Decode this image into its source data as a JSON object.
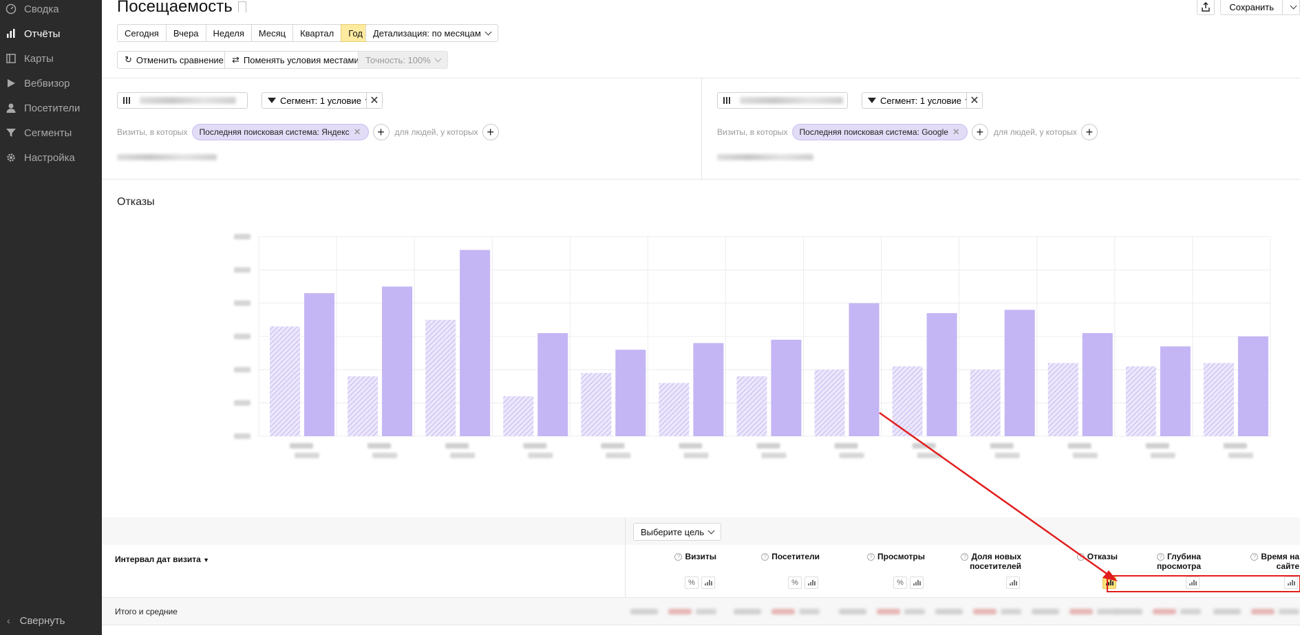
{
  "sidebar": {
    "items": [
      {
        "label": "Сводка",
        "icon": "dashboard-icon",
        "active": false
      },
      {
        "label": "Отчёты",
        "icon": "reports-icon",
        "active": true
      },
      {
        "label": "Карты",
        "icon": "maps-icon",
        "active": false
      },
      {
        "label": "Вебвизор",
        "icon": "play-icon",
        "active": false
      },
      {
        "label": "Посетители",
        "icon": "user-icon",
        "active": false
      },
      {
        "label": "Сегменты",
        "icon": "filter-icon",
        "active": false
      },
      {
        "label": "Настройка",
        "icon": "gear-icon",
        "active": false
      }
    ],
    "collapse_label": "Свернуть"
  },
  "header": {
    "title": "Посещаемость",
    "save_label": "Сохранить"
  },
  "toolbar": {
    "periods": [
      "Сегодня",
      "Вчера",
      "Неделя",
      "Месяц",
      "Квартал",
      "Год"
    ],
    "selected_period": "Год",
    "detail_label": "Детализация: по месяцам",
    "cancel_compare_label": "Отменить сравнение",
    "swap_label": "Поменять условия местами",
    "accuracy_label": "Точность: 100%"
  },
  "segments": {
    "left": {
      "segment_label": "Сегмент: 1 условие",
      "visits_prefix": "Визиты, в которых",
      "condition": "Последняя поисковая система: Яндекс",
      "people_label": "для людей, у которых"
    },
    "right": {
      "segment_label": "Сегмент: 1 условие",
      "visits_prefix": "Визиты, в которых",
      "condition": "Последняя поисковая система: Google",
      "people_label": "для людей, у которых"
    }
  },
  "chart_title": "Отказы",
  "chart_data": {
    "type": "bar",
    "title": "Отказы",
    "categories_count": 13,
    "series": [
      {
        "style": "hatched",
        "values": [
          3.3,
          1.8,
          3.5,
          1.2,
          1.9,
          1.6,
          1.8,
          2.0,
          2.1,
          2.0,
          2.2,
          2.1,
          2.2
        ]
      },
      {
        "style": "solid",
        "values": [
          4.3,
          4.5,
          5.6,
          3.1,
          2.6,
          2.8,
          2.9,
          4.0,
          3.7,
          3.8,
          3.1,
          2.7,
          3.0
        ]
      }
    ],
    "ylim": [
      0,
      6
    ],
    "y_ticks": 7,
    "colors": {
      "solid": "#c4b5f5",
      "hatched": "#d3c9f4"
    },
    "grid": true
  },
  "table": {
    "goal_label": "Выберите цель",
    "date_header": "Интервал дат визита",
    "metrics": [
      {
        "label": "Визиты",
        "percent_btn": true
      },
      {
        "label": "Посетители",
        "percent_btn": true
      },
      {
        "label": "Просмотры",
        "percent_btn": true
      },
      {
        "label": "Доля новых\nпосетителей",
        "percent_btn": false
      },
      {
        "label": "Отказы",
        "percent_btn": false,
        "chart_active": true
      },
      {
        "label": "Глубина\nпросмотра",
        "percent_btn": false
      },
      {
        "label": "Время на\nсайте",
        "percent_btn": false
      }
    ],
    "totals_label": "Итого и средние"
  },
  "annotation": {
    "color": "#e11d1d"
  }
}
